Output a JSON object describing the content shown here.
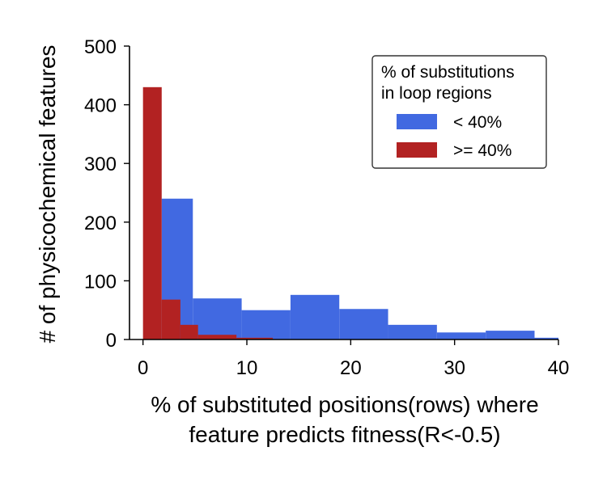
{
  "chart_data": {
    "type": "histogram",
    "xlabel_line1": "% of substituted positions(rows) where",
    "xlabel_line2": "feature predicts fitness(R<-0.5)",
    "ylabel": "# of physicochemical features",
    "xlim": [
      -1.3,
      40
    ],
    "ylim": [
      0,
      500
    ],
    "xticks": [
      0,
      10,
      20,
      30,
      40
    ],
    "yticks": [
      0,
      100,
      200,
      300,
      400,
      500
    ],
    "legend": {
      "title_line1": "% of substitutions",
      "title_line2": "in loop regions",
      "placement": "top-right"
    },
    "series": [
      {
        "name": "< 40%",
        "color": "#4169E1",
        "bins": [
          {
            "x0": 1.8,
            "x1": 4.8,
            "value": 240
          },
          {
            "x0": 4.8,
            "x1": 9.5,
            "value": 70
          },
          {
            "x0": 9.5,
            "x1": 14.2,
            "value": 50
          },
          {
            "x0": 14.2,
            "x1": 18.9,
            "value": 76
          },
          {
            "x0": 18.9,
            "x1": 23.6,
            "value": 52
          },
          {
            "x0": 23.6,
            "x1": 28.3,
            "value": 25
          },
          {
            "x0": 28.3,
            "x1": 33.0,
            "value": 12
          },
          {
            "x0": 33.0,
            "x1": 37.7,
            "value": 15
          },
          {
            "x0": 37.7,
            "x1": 40.0,
            "value": 3
          }
        ]
      },
      {
        "name": ">= 40%",
        "color": "#B22222",
        "bins": [
          {
            "x0": 0.0,
            "x1": 1.8,
            "value": 430
          },
          {
            "x0": 1.8,
            "x1": 3.6,
            "value": 68
          },
          {
            "x0": 3.6,
            "x1": 5.3,
            "value": 25
          },
          {
            "x0": 5.3,
            "x1": 9.0,
            "value": 8
          },
          {
            "x0": 9.0,
            "x1": 12.5,
            "value": 3
          }
        ]
      }
    ]
  }
}
